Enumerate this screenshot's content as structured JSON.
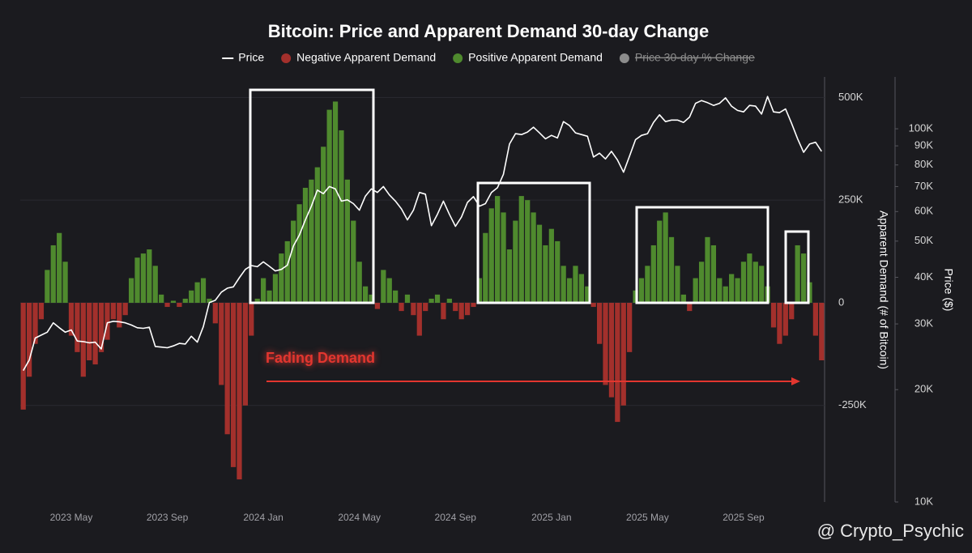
{
  "chart_data": {
    "type": "combo",
    "title": "Bitcoin: Price and Apparent Demand 30-day Change",
    "legend": [
      {
        "name": "Price",
        "marker": "line",
        "color": "#ffffff",
        "disabled": false
      },
      {
        "name": "Negative Apparent Demand",
        "marker": "dot",
        "color": "#a3302c",
        "disabled": false
      },
      {
        "name": "Positive Apparent Demand",
        "marker": "dot",
        "color": "#4f8a2e",
        "disabled": false
      },
      {
        "name": "Price 30-day % Change",
        "marker": "dot",
        "color": "#8c8c8c",
        "disabled": true
      }
    ],
    "categories": [
      null,
      null,
      null,
      null,
      null,
      null,
      null,
      null,
      "2023 May",
      null,
      null,
      null,
      null,
      null,
      null,
      null,
      null,
      null,
      null,
      null,
      null,
      null,
      null,
      null,
      "2023 Sep",
      null,
      null,
      null,
      null,
      null,
      null,
      null,
      null,
      null,
      null,
      null,
      null,
      null,
      null,
      null,
      "2024 Jan",
      null,
      null,
      null,
      null,
      null,
      null,
      null,
      null,
      null,
      null,
      null,
      null,
      null,
      null,
      null,
      "2024 May",
      null,
      null,
      null,
      null,
      null,
      null,
      null,
      null,
      null,
      null,
      null,
      null,
      null,
      null,
      null,
      "2024 Sep",
      null,
      null,
      null,
      null,
      null,
      null,
      null,
      null,
      null,
      null,
      null,
      null,
      null,
      null,
      null,
      "2025 Jan",
      null,
      null,
      null,
      null,
      null,
      null,
      null,
      null,
      null,
      null,
      null,
      null,
      null,
      null,
      null,
      "2025 May",
      null,
      null,
      null,
      null,
      null,
      null,
      null,
      null,
      null,
      null,
      null,
      null,
      null,
      null,
      null,
      "2025 Sep",
      null,
      null,
      null,
      null,
      null,
      null,
      null,
      null,
      null,
      null,
      null,
      null,
      null
    ],
    "series": [
      {
        "name": "Price",
        "type": "line",
        "axis": "y2",
        "color": "#ffffff",
        "values": [
          22500,
          24000,
          27500,
          28000,
          28500,
          30200,
          29300,
          28500,
          28900,
          27000,
          26900,
          26700,
          26800,
          25700,
          30200,
          30500,
          30400,
          30200,
          29800,
          29300,
          29200,
          29400,
          26100,
          26000,
          25900,
          26200,
          26600,
          26500,
          27800,
          26800,
          29500,
          34200,
          34700,
          36500,
          37400,
          37700,
          39900,
          42000,
          43000,
          42700,
          44000,
          42800,
          41600,
          42000,
          43100,
          48500,
          51900,
          57000,
          62000,
          68500,
          67000,
          70000,
          69000,
          64000,
          64500,
          63000,
          60500,
          66000,
          69000,
          67500,
          70000,
          66500,
          64000,
          61000,
          57000,
          60500,
          67500,
          66800,
          55000,
          59000,
          64000,
          59000,
          54800,
          58000,
          63500,
          65800,
          62000,
          63000,
          67500,
          69500,
          75500,
          91000,
          97000,
          96500,
          98000,
          101000,
          97500,
          94000,
          96000,
          94500,
          104500,
          102000,
          97500,
          96500,
          95500,
          84000,
          86000,
          83000,
          87000,
          82500,
          76500,
          84500,
          93500,
          96000,
          97000,
          104000,
          109000,
          104500,
          105500,
          105500,
          104000,
          107500,
          117000,
          119000,
          117500,
          115500,
          117000,
          121000,
          115000,
          112000,
          111000,
          115500,
          115000,
          109500,
          122000,
          111000,
          110500,
          113000,
          103500,
          94000,
          86500,
          91000,
          92000,
          87000
        ]
      },
      {
        "type": "bar",
        "axis": "y",
        "positive_color": "#4f8a2e",
        "negative_color": "#a3302c",
        "values": [
          -260000,
          -180000,
          -100000,
          -40000,
          80000,
          140000,
          170000,
          100000,
          -80000,
          -120000,
          -180000,
          -140000,
          -150000,
          -120000,
          -90000,
          -40000,
          -60000,
          -30000,
          60000,
          110000,
          120000,
          130000,
          90000,
          20000,
          -10000,
          5000,
          -10000,
          10000,
          30000,
          50000,
          60000,
          10000,
          -50000,
          -200000,
          -320000,
          -400000,
          -430000,
          -250000,
          -80000,
          10000,
          60000,
          30000,
          70000,
          120000,
          150000,
          200000,
          240000,
          280000,
          300000,
          330000,
          380000,
          470000,
          490000,
          420000,
          300000,
          200000,
          100000,
          40000,
          20000,
          -15000,
          80000,
          60000,
          30000,
          -20000,
          20000,
          -30000,
          -80000,
          -20000,
          10000,
          20000,
          -40000,
          10000,
          -20000,
          -40000,
          -30000,
          -10000,
          60000,
          170000,
          230000,
          260000,
          220000,
          130000,
          200000,
          260000,
          250000,
          220000,
          190000,
          140000,
          180000,
          150000,
          90000,
          60000,
          90000,
          70000,
          40000,
          -10000,
          -100000,
          -200000,
          -230000,
          -290000,
          -250000,
          -120000,
          30000,
          60000,
          90000,
          140000,
          200000,
          220000,
          160000,
          90000,
          20000,
          -20000,
          60000,
          100000,
          160000,
          140000,
          60000,
          40000,
          70000,
          60000,
          100000,
          120000,
          100000,
          90000,
          40000,
          -60000,
          -100000,
          -80000,
          -40000,
          140000,
          120000,
          50000,
          -80000,
          -140000
        ]
      }
    ],
    "ylabel": "Apparent Demand (# of Bitcoin)",
    "ylim": [
      -485000,
      550000
    ],
    "yticks": [
      {
        "value": 500000,
        "label": "500K"
      },
      {
        "value": 250000,
        "label": "250K"
      },
      0,
      {
        "value": -250000,
        "label": "-250K"
      }
    ],
    "y2label": "Price ($)",
    "y2scale": "log",
    "y2lim": [
      10000,
      137700
    ],
    "y2ticks": [
      {
        "value": 10000,
        "label": "10K"
      },
      {
        "value": 20000,
        "label": "20K"
      },
      {
        "value": 30000,
        "label": "30K"
      },
      {
        "value": 40000,
        "label": "40K"
      },
      {
        "value": 50000,
        "label": "50K"
      },
      {
        "value": 60000,
        "label": "60K"
      },
      {
        "value": 70000,
        "label": "70K"
      },
      {
        "value": 80000,
        "label": "80K"
      },
      {
        "value": 90000,
        "label": "90K"
      },
      {
        "value": 100000,
        "label": "100K"
      }
    ],
    "grid": true,
    "annotation": {
      "text": "Fading Demand",
      "color": "#e2362f"
    },
    "watermark": "@ Crypto_Psychic"
  }
}
